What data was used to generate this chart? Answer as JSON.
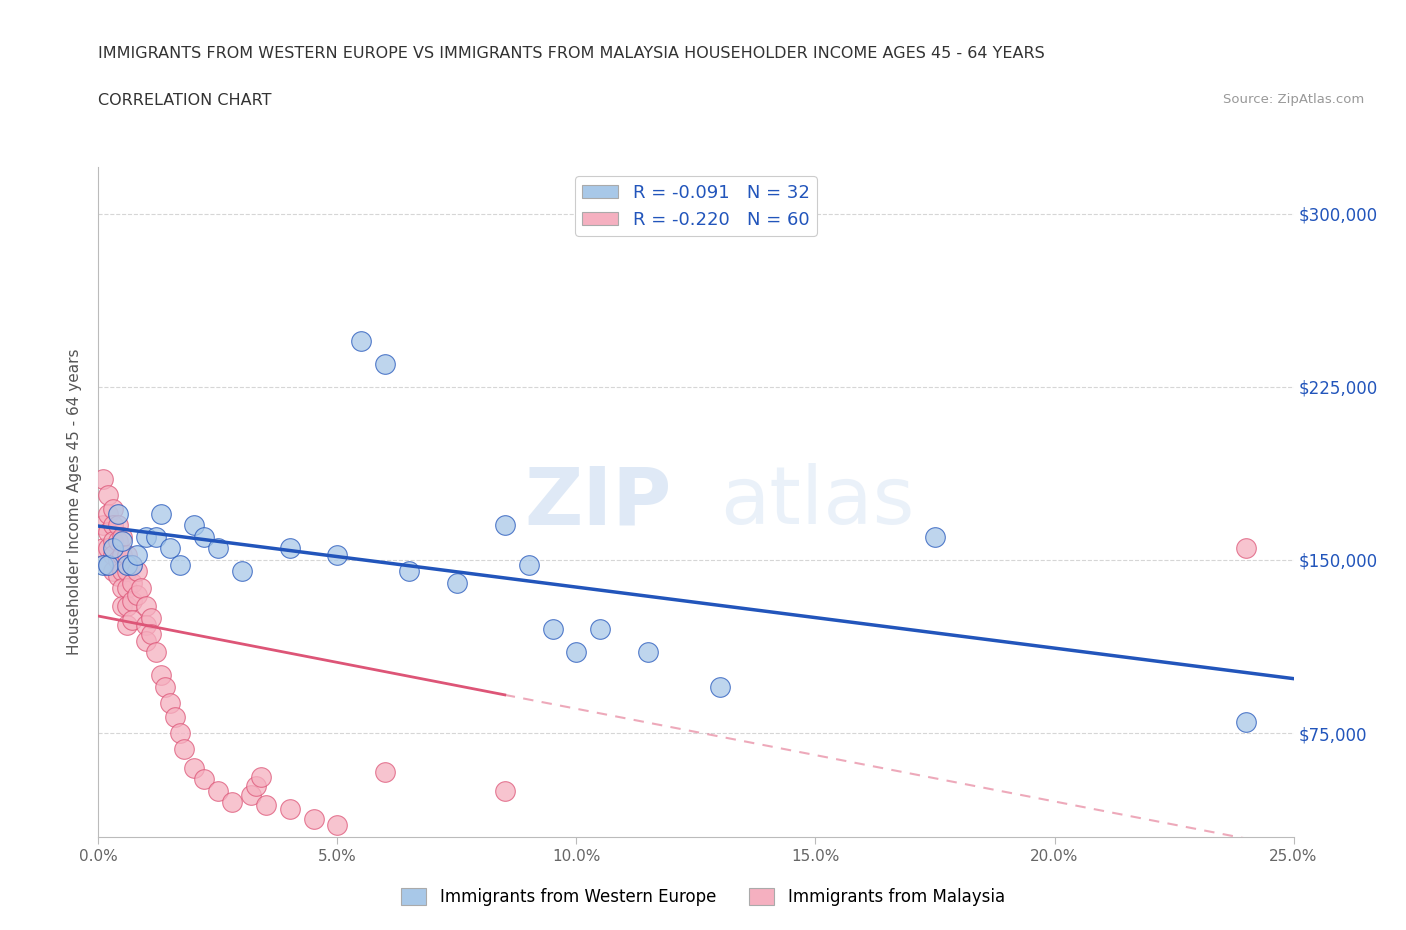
{
  "title_line1": "IMMIGRANTS FROM WESTERN EUROPE VS IMMIGRANTS FROM MALAYSIA HOUSEHOLDER INCOME AGES 45 - 64 YEARS",
  "title_line2": "CORRELATION CHART",
  "source_text": "Source: ZipAtlas.com",
  "ylabel": "Householder Income Ages 45 - 64 years",
  "xlim": [
    0.0,
    0.25
  ],
  "ylim": [
    30000,
    320000
  ],
  "xtick_labels": [
    "0.0%",
    "5.0%",
    "10.0%",
    "15.0%",
    "20.0%",
    "25.0%"
  ],
  "xtick_values": [
    0.0,
    0.05,
    0.1,
    0.15,
    0.2,
    0.25
  ],
  "ytick_values": [
    75000,
    150000,
    225000,
    300000
  ],
  "right_ytick_labels": [
    "$75,000",
    "$150,000",
    "$225,000",
    "$300,000"
  ],
  "watermark_left": "ZIP",
  "watermark_right": "atlas",
  "r_western": -0.091,
  "n_western": 32,
  "r_malaysia": -0.22,
  "n_malaysia": 60,
  "color_western": "#a8c8e8",
  "color_malaysia": "#f5b0c0",
  "line_color_western": "#2255bb",
  "line_color_malaysia": "#dd5577",
  "background_color": "#ffffff",
  "grid_color": "#cccccc",
  "blue_scatter": [
    [
      0.001,
      148000
    ],
    [
      0.002,
      148000
    ],
    [
      0.003,
      155000
    ],
    [
      0.004,
      170000
    ],
    [
      0.005,
      158000
    ],
    [
      0.006,
      148000
    ],
    [
      0.007,
      148000
    ],
    [
      0.008,
      152000
    ],
    [
      0.01,
      160000
    ],
    [
      0.012,
      160000
    ],
    [
      0.013,
      170000
    ],
    [
      0.015,
      155000
    ],
    [
      0.017,
      148000
    ],
    [
      0.02,
      165000
    ],
    [
      0.022,
      160000
    ],
    [
      0.025,
      155000
    ],
    [
      0.03,
      145000
    ],
    [
      0.04,
      155000
    ],
    [
      0.05,
      152000
    ],
    [
      0.055,
      245000
    ],
    [
      0.06,
      235000
    ],
    [
      0.065,
      145000
    ],
    [
      0.075,
      140000
    ],
    [
      0.085,
      165000
    ],
    [
      0.09,
      148000
    ],
    [
      0.095,
      120000
    ],
    [
      0.1,
      110000
    ],
    [
      0.105,
      120000
    ],
    [
      0.115,
      110000
    ],
    [
      0.13,
      95000
    ],
    [
      0.175,
      160000
    ],
    [
      0.24,
      80000
    ]
  ],
  "pink_scatter": [
    [
      0.001,
      185000
    ],
    [
      0.001,
      165000
    ],
    [
      0.001,
      155000
    ],
    [
      0.002,
      178000
    ],
    [
      0.002,
      170000
    ],
    [
      0.002,
      162000
    ],
    [
      0.002,
      155000
    ],
    [
      0.002,
      148000
    ],
    [
      0.003,
      172000
    ],
    [
      0.003,
      165000
    ],
    [
      0.003,
      158000
    ],
    [
      0.003,
      152000
    ],
    [
      0.003,
      145000
    ],
    [
      0.004,
      165000
    ],
    [
      0.004,
      158000
    ],
    [
      0.004,
      150000
    ],
    [
      0.004,
      143000
    ],
    [
      0.005,
      160000
    ],
    [
      0.005,
      152000
    ],
    [
      0.005,
      145000
    ],
    [
      0.005,
      138000
    ],
    [
      0.005,
      130000
    ],
    [
      0.006,
      152000
    ],
    [
      0.006,
      145000
    ],
    [
      0.006,
      138000
    ],
    [
      0.006,
      130000
    ],
    [
      0.006,
      122000
    ],
    [
      0.007,
      148000
    ],
    [
      0.007,
      140000
    ],
    [
      0.007,
      132000
    ],
    [
      0.007,
      124000
    ],
    [
      0.008,
      145000
    ],
    [
      0.008,
      135000
    ],
    [
      0.009,
      138000
    ],
    [
      0.01,
      130000
    ],
    [
      0.01,
      122000
    ],
    [
      0.01,
      115000
    ],
    [
      0.011,
      125000
    ],
    [
      0.011,
      118000
    ],
    [
      0.012,
      110000
    ],
    [
      0.013,
      100000
    ],
    [
      0.014,
      95000
    ],
    [
      0.015,
      88000
    ],
    [
      0.016,
      82000
    ],
    [
      0.017,
      75000
    ],
    [
      0.018,
      68000
    ],
    [
      0.02,
      60000
    ],
    [
      0.022,
      55000
    ],
    [
      0.025,
      50000
    ],
    [
      0.028,
      45000
    ],
    [
      0.032,
      48000
    ],
    [
      0.033,
      52000
    ],
    [
      0.034,
      56000
    ],
    [
      0.035,
      44000
    ],
    [
      0.04,
      42000
    ],
    [
      0.045,
      38000
    ],
    [
      0.05,
      35000
    ],
    [
      0.06,
      58000
    ],
    [
      0.085,
      50000
    ],
    [
      0.24,
      155000
    ]
  ]
}
